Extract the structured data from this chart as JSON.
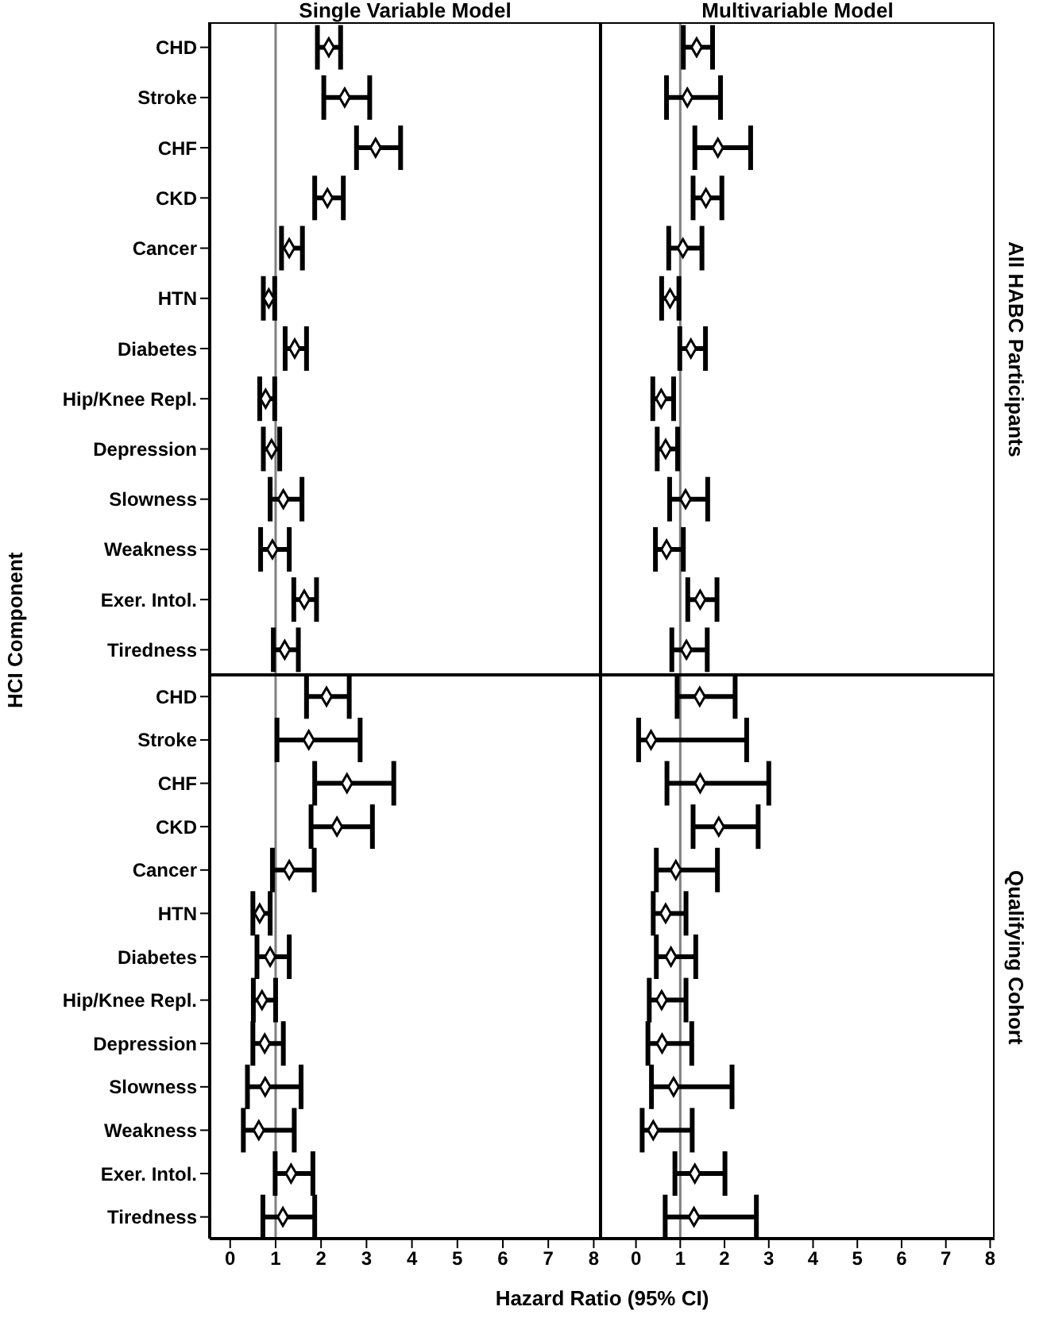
{
  "chart_data": [
    {
      "type": "scatter",
      "title": "Single Variable Model",
      "ylabel": "HCI Component",
      "categories": [
        "CHD",
        "Stroke",
        "CHF",
        "CKD",
        "Cancer",
        "HTN",
        "Diabetes",
        "Hip/Knee Repl.",
        "Depression",
        "Slowness",
        "Weakness",
        "Exer. Intol.",
        "Tiredness"
      ],
      "orientation": "horizontal",
      "color": "#000000",
      "marker": "diamond",
      "values": [
        2.17,
        2.52,
        3.2,
        2.14,
        1.3,
        0.85,
        1.42,
        0.78,
        0.91,
        1.17,
        0.93,
        1.63,
        1.2
      ],
      "errors": [
        [
          1.92,
          2.43
        ],
        [
          2.06,
          3.07
        ],
        [
          2.78,
          3.75
        ],
        [
          1.86,
          2.49
        ],
        [
          1.13,
          1.59
        ],
        [
          0.73,
          0.98
        ],
        [
          1.21,
          1.68
        ],
        [
          0.65,
          0.98
        ],
        [
          0.73,
          1.09
        ],
        [
          0.88,
          1.58
        ],
        [
          0.67,
          1.3
        ],
        [
          1.4,
          1.9
        ],
        [
          0.95,
          1.5
        ]
      ],
      "xlim": [
        -0.45,
        8.15
      ],
      "xticks": [
        0,
        1,
        2,
        3,
        4,
        5,
        6,
        7,
        8
      ],
      "tick_labels": "y",
      "ref_lines": [
        {
          "axis": "x",
          "value": 1,
          "color": "#808080"
        }
      ]
    },
    {
      "type": "scatter",
      "title": "Multivariable Model",
      "y2label": "All HABC Participants",
      "categories": [
        null,
        null,
        null,
        null,
        null,
        null,
        null,
        null,
        null,
        null,
        null,
        null,
        null
      ],
      "orientation": "horizontal",
      "color": "#000000",
      "marker": "diamond",
      "values": [
        1.37,
        1.16,
        1.85,
        1.58,
        1.06,
        0.77,
        1.24,
        0.57,
        0.67,
        1.12,
        0.69,
        1.45,
        1.14
      ],
      "errors": [
        [
          1.07,
          1.73
        ],
        [
          0.69,
          1.91
        ],
        [
          1.33,
          2.59
        ],
        [
          1.29,
          1.94
        ],
        [
          0.74,
          1.49
        ],
        [
          0.58,
          0.97
        ],
        [
          0.99,
          1.57
        ],
        [
          0.38,
          0.85
        ],
        [
          0.48,
          0.94
        ],
        [
          0.76,
          1.62
        ],
        [
          0.44,
          1.07
        ],
        [
          1.17,
          1.83
        ],
        [
          0.81,
          1.61
        ]
      ],
      "xlim": [
        -0.8,
        8.1
      ],
      "xticks": [
        0,
        1,
        2,
        3,
        4,
        5,
        6,
        7,
        8
      ],
      "tick_labels": false,
      "ref_lines": [
        {
          "axis": "x",
          "value": 1,
          "color": "#808080"
        }
      ]
    },
    {
      "type": "scatter",
      "xlabel": "Hazard Ratio (95% CI)",
      "categories": [
        "CHD",
        "Stroke",
        "CHF",
        "CKD",
        "Cancer",
        "HTN",
        "Diabetes",
        "Hip/Knee Repl.",
        "Depression",
        "Slowness",
        "Weakness",
        "Exer. Intol.",
        "Tiredness"
      ],
      "orientation": "horizontal",
      "color": "#000000",
      "marker": "diamond",
      "values": [
        2.12,
        1.73,
        2.57,
        2.35,
        1.3,
        0.65,
        0.88,
        0.7,
        0.76,
        0.77,
        0.63,
        1.34,
        1.16
      ],
      "errors": [
        [
          1.68,
          2.62
        ],
        [
          1.03,
          2.86
        ],
        [
          1.86,
          3.6
        ],
        [
          1.78,
          3.13
        ],
        [
          0.93,
          1.85
        ],
        [
          0.5,
          0.88
        ],
        [
          0.59,
          1.3
        ],
        [
          0.51,
          1.0
        ],
        [
          0.5,
          1.17
        ],
        [
          0.38,
          1.56
        ],
        [
          0.29,
          1.41
        ],
        [
          0.99,
          1.82
        ],
        [
          0.72,
          1.86
        ]
      ],
      "xlim": [
        -0.45,
        8.15
      ],
      "xticks": [
        0,
        1,
        2,
        3,
        4,
        5,
        6,
        7,
        8
      ],
      "ref_lines": [
        {
          "axis": "x",
          "value": 1,
          "color": "#808080"
        }
      ]
    },
    {
      "type": "scatter",
      "y2label": "Qualifying Cohort",
      "categories": [
        null,
        null,
        null,
        null,
        null,
        null,
        null,
        null,
        null,
        null,
        null,
        null,
        null
      ],
      "orientation": "horizontal",
      "color": "#000000",
      "marker": "diamond",
      "values": [
        1.44,
        0.34,
        1.45,
        1.87,
        0.9,
        0.67,
        0.79,
        0.58,
        0.59,
        0.85,
        0.39,
        1.33,
        1.31
      ],
      "errors": [
        [
          0.93,
          2.24
        ],
        [
          0.06,
          2.5
        ],
        [
          0.7,
          3.0
        ],
        [
          1.29,
          2.76
        ],
        [
          0.46,
          1.84
        ],
        [
          0.39,
          1.13
        ],
        [
          0.46,
          1.35
        ],
        [
          0.3,
          1.13
        ],
        [
          0.27,
          1.26
        ],
        [
          0.35,
          2.17
        ],
        [
          0.14,
          1.27
        ],
        [
          0.88,
          2.01
        ],
        [
          0.66,
          2.72
        ]
      ],
      "xlim": [
        -0.8,
        8.1
      ],
      "xticks": [
        0,
        1,
        2,
        3,
        4,
        5,
        6,
        7,
        8
      ],
      "tick_labels": "x",
      "ref_lines": [
        {
          "axis": "x",
          "value": 1,
          "color": "#808080"
        }
      ]
    }
  ]
}
